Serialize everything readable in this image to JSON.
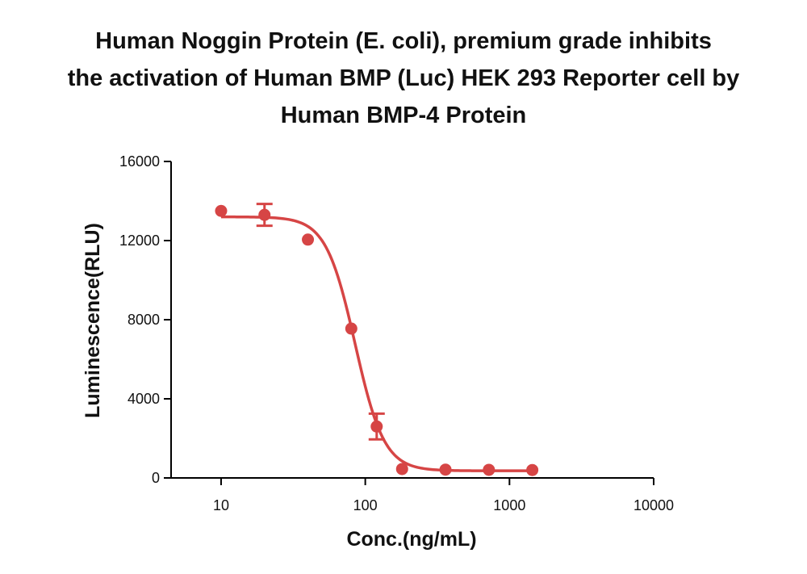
{
  "chart_data": {
    "type": "scatter",
    "title_lines": [
      "Human Noggin Protein (E. coli), premium grade inhibits",
      "the activation of Human BMP (Luc) HEK 293 Reporter cell by",
      "Human BMP-4 Protein"
    ],
    "xlabel": "Conc.(ng/mL)",
    "ylabel": "Luminescence(RLU)",
    "x_scale": "log",
    "xlim": [
      4.5,
      10000
    ],
    "ylim": [
      0,
      16000
    ],
    "x_ticks": [
      10,
      100,
      1000,
      10000
    ],
    "x_tick_labels": [
      "10",
      "100",
      "1000",
      "10000"
    ],
    "y_ticks": [
      0,
      4000,
      8000,
      12000,
      16000
    ],
    "y_tick_labels": [
      "0",
      "4000",
      "8000",
      "12000",
      "16000"
    ],
    "grid": false,
    "color": "#d64545",
    "series": [
      {
        "points": [
          {
            "x": 10,
            "y": 13500,
            "err": 0
          },
          {
            "x": 20,
            "y": 13300,
            "err": 550
          },
          {
            "x": 40,
            "y": 12050,
            "err": 0
          },
          {
            "x": 80,
            "y": 7550,
            "err": 0
          },
          {
            "x": 120,
            "y": 2600,
            "err": 650
          },
          {
            "x": 180,
            "y": 450,
            "err": 0
          },
          {
            "x": 360,
            "y": 420,
            "err": 0
          },
          {
            "x": 720,
            "y": 410,
            "err": 0
          },
          {
            "x": 1440,
            "y": 400,
            "err": 0
          }
        ],
        "fit": {
          "model": "4PL",
          "top": 13200,
          "bottom": 360,
          "ec50": 85,
          "hill": 4.3
        }
      }
    ]
  }
}
